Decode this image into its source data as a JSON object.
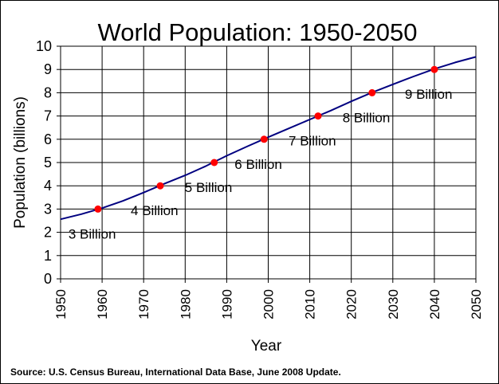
{
  "chart_data": {
    "type": "line",
    "title": "World Population: 1950-2050",
    "xlabel": "Year",
    "ylabel": "Population (billions)",
    "xlim": [
      1950,
      2050
    ],
    "ylim": [
      0,
      10
    ],
    "x_ticks": [
      "1950",
      "1960",
      "1970",
      "1980",
      "1990",
      "2000",
      "2010",
      "2020",
      "2030",
      "2040",
      "2050"
    ],
    "y_ticks": [
      "0",
      "1",
      "2",
      "3",
      "4",
      "5",
      "6",
      "7",
      "8",
      "9",
      "10"
    ],
    "grid": true,
    "series": [
      {
        "x": [
          1950,
          1955,
          1960,
          1965,
          1970,
          1975,
          1980,
          1985,
          1990,
          1995,
          2000,
          2005,
          2010,
          2015,
          2020,
          2025,
          2030,
          2035,
          2040,
          2045,
          2050
        ],
        "values": [
          2.56,
          2.78,
          3.04,
          3.35,
          3.71,
          4.09,
          4.45,
          4.85,
          5.29,
          5.7,
          6.09,
          6.47,
          6.85,
          7.23,
          7.63,
          8.01,
          8.36,
          8.7,
          9.02,
          9.3,
          9.54
        ],
        "color": "#000080"
      }
    ],
    "milestones": [
      {
        "year": 1959,
        "value": 3,
        "label": "3 Billion"
      },
      {
        "year": 1974,
        "value": 4,
        "label": "4 Billion"
      },
      {
        "year": 1987,
        "value": 5,
        "label": "5 Billion"
      },
      {
        "year": 1999,
        "value": 6,
        "label": "6 Billion"
      },
      {
        "year": 2012,
        "value": 7,
        "label": "7 Billion"
      },
      {
        "year": 2025,
        "value": 8,
        "label": "8 Billion"
      },
      {
        "year": 2040,
        "value": 9,
        "label": "9 Billion"
      }
    ],
    "marker_color": "#ff0000",
    "source": "Source: U.S. Census Bureau, International Data Base, June 2008 Update."
  }
}
